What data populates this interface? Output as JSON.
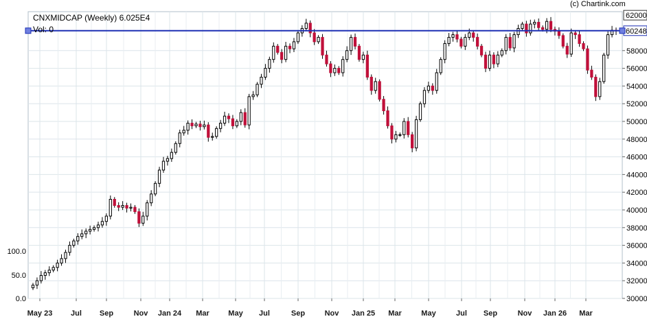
{
  "header": {
    "title": "CNXMIDCAP (Weekly) 6.025E4",
    "vol_label": "Vol: 0",
    "credit": "(c) Chartink.com"
  },
  "chart_data": {
    "type": "candlestick",
    "title": "CNXMIDCAP (Weekly) 6.025E4",
    "x_tick_labels": [
      "May 23",
      "Jul",
      "Sep",
      "Nov",
      "Jan 24",
      "Mar",
      "May",
      "Jul",
      "Sep",
      "Nov",
      "Jan 25",
      "Mar",
      "May",
      "Jul",
      "Sep",
      "Nov",
      "Jan 26",
      "Mar"
    ],
    "y_ticks": [
      30000,
      32000,
      34000,
      36000,
      38000,
      40000,
      42000,
      44000,
      46000,
      48000,
      50000,
      52000,
      54000,
      56000,
      58000
    ],
    "ylim": [
      30000,
      62400
    ],
    "volume_axis_ticks": [
      "0.0",
      "50.0",
      "100.0"
    ],
    "horizontal_line": {
      "value": 60248,
      "label": "60248",
      "color": "#1c2fb4"
    },
    "last_price_marker": {
      "value": 62000,
      "label": "62000"
    },
    "grid": true,
    "colors": {
      "up": "#ffffff",
      "down": "#c0103a",
      "wick": "#000000",
      "grid": "#dbe4ea"
    },
    "weekly_closes": [
      31500,
      32000,
      32600,
      32900,
      33200,
      33500,
      34000,
      34500,
      35200,
      36000,
      36500,
      37000,
      37300,
      37600,
      37800,
      38000,
      38300,
      38700,
      39300,
      41200,
      40500,
      40300,
      40500,
      40200,
      40300,
      39800,
      38500,
      39300,
      40800,
      41800,
      43000,
      44500,
      45500,
      45800,
      46500,
      47500,
      48700,
      49000,
      49800,
      49500,
      49700,
      49400,
      49600,
      48200,
      48300,
      49200,
      49800,
      50600,
      50300,
      49500,
      50000,
      51000,
      49600,
      52800,
      53000,
      54200,
      55000,
      56000,
      57000,
      58500,
      57800,
      57000,
      58500,
      58200,
      59000,
      60000,
      60500,
      61100,
      60000,
      59000,
      59500,
      57500,
      56500,
      55500,
      56000,
      55500,
      57000,
      58000,
      59500,
      58500,
      57000,
      57500,
      55000,
      53500,
      54500,
      52500,
      51200,
      49500,
      48000,
      48500,
      48500,
      50000,
      48500,
      47000,
      50200,
      52000,
      53500,
      54000,
      53500,
      55500,
      57000,
      58800,
      59500,
      59800,
      59300,
      58500,
      59500,
      60000,
      59500,
      58500,
      57500,
      56000,
      57500,
      56500,
      57500,
      58000,
      59500,
      58300,
      59800,
      60500,
      61000,
      60000,
      61000,
      61200,
      60600,
      60400,
      61300,
      60400,
      60200,
      59700,
      58500,
      57600,
      60000,
      59800,
      58800,
      58200,
      55800,
      55000,
      52800,
      54500,
      57500,
      59800,
      60300,
      60250
    ]
  }
}
